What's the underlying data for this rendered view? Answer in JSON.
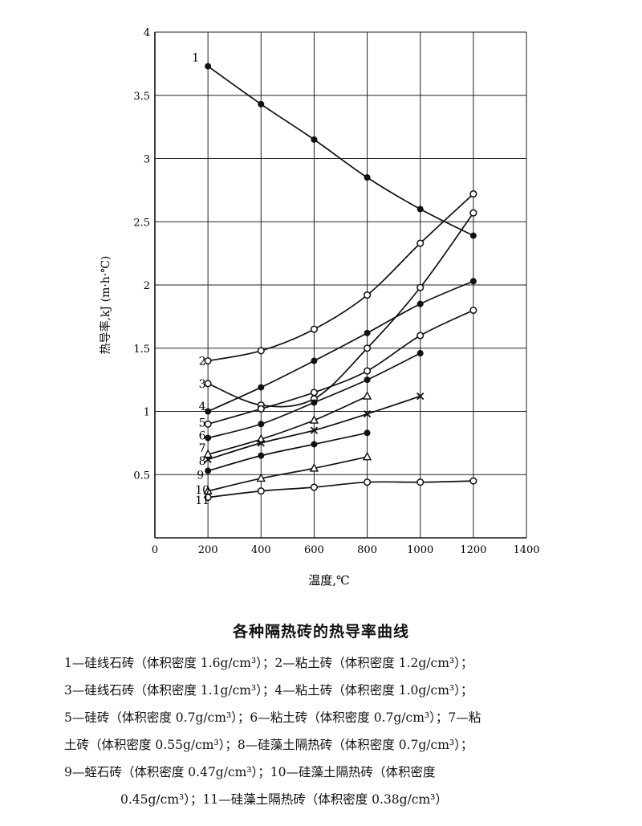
{
  "chart_data": {
    "type": "line",
    "xlabel": "温度,℃",
    "ylabel": "热导率,kJ (m·h·℃)",
    "xlim": [
      0,
      1400
    ],
    "ylim": [
      0,
      4
    ],
    "x_ticks": [
      0,
      200,
      400,
      600,
      800,
      1000,
      1200,
      1400
    ],
    "x_tick_labels": [
      "0",
      "200",
      "400",
      "600",
      "800",
      "1000",
      "1200",
      "1400"
    ],
    "y_ticks": [
      0.5,
      1,
      1.5,
      2,
      2.5,
      3,
      3.5,
      4
    ],
    "y_tick_labels": [
      "0.5",
      "1",
      "1.5",
      "2",
      "2.5",
      "3",
      "3.5",
      "4"
    ],
    "grid": true,
    "series": [
      {
        "name": "1",
        "marker": "dot",
        "x": [
          200,
          400,
          600,
          800,
          1000,
          1200
        ],
        "y": [
          3.73,
          3.43,
          3.15,
          2.85,
          2.6,
          2.39
        ]
      },
      {
        "name": "2",
        "marker": "circle",
        "x": [
          200,
          400,
          600,
          800,
          1000,
          1200
        ],
        "y": [
          1.4,
          1.48,
          1.65,
          1.92,
          2.33,
          2.72
        ]
      },
      {
        "name": "3",
        "marker": "circle",
        "x": [
          200,
          400,
          600,
          800,
          1000,
          1200
        ],
        "y": [
          1.22,
          1.05,
          1.1,
          1.5,
          1.98,
          2.57
        ]
      },
      {
        "name": "4",
        "marker": "dot",
        "x": [
          200,
          400,
          600,
          800,
          1000,
          1200
        ],
        "y": [
          1.0,
          1.19,
          1.4,
          1.62,
          1.85,
          2.03
        ]
      },
      {
        "name": "5",
        "marker": "circle",
        "x": [
          200,
          400,
          600,
          800,
          1000,
          1200
        ],
        "y": [
          0.9,
          1.02,
          1.15,
          1.32,
          1.6,
          1.8
        ]
      },
      {
        "name": "6",
        "marker": "dot",
        "x": [
          200,
          400,
          600,
          800,
          1000
        ],
        "y": [
          0.79,
          0.9,
          1.07,
          1.25,
          1.46
        ]
      },
      {
        "name": "7",
        "marker": "triangle",
        "x": [
          200,
          400,
          600,
          800
        ],
        "y": [
          0.66,
          0.78,
          0.93,
          1.12
        ]
      },
      {
        "name": "8",
        "marker": "cross",
        "x": [
          200,
          400,
          600,
          800,
          1000
        ],
        "y": [
          0.62,
          0.75,
          0.85,
          0.98,
          1.12
        ]
      },
      {
        "name": "9",
        "marker": "dot",
        "x": [
          200,
          400,
          600,
          800
        ],
        "y": [
          0.53,
          0.65,
          0.74,
          0.83
        ]
      },
      {
        "name": "10",
        "marker": "triangle",
        "x": [
          200,
          400,
          600,
          800
        ],
        "y": [
          0.37,
          0.47,
          0.55,
          0.64
        ]
      },
      {
        "name": "11",
        "marker": "circle",
        "x": [
          200,
          400,
          600,
          800,
          1000,
          1200
        ],
        "y": [
          0.32,
          0.37,
          0.4,
          0.44,
          0.44,
          0.45
        ]
      }
    ],
    "labels": [
      {
        "text": "1",
        "x": 140,
        "y": 3.8
      },
      {
        "text": "2",
        "x": 165,
        "y": 1.4
      },
      {
        "text": "3",
        "x": 165,
        "y": 1.22
      },
      {
        "text": "4",
        "x": 165,
        "y": 1.04
      },
      {
        "text": "5",
        "x": 165,
        "y": 0.91
      },
      {
        "text": "6",
        "x": 165,
        "y": 0.81
      },
      {
        "text": "7",
        "x": 165,
        "y": 0.71
      },
      {
        "text": "8",
        "x": 165,
        "y": 0.61
      },
      {
        "text": "9",
        "x": 158,
        "y": 0.5
      },
      {
        "text": "10",
        "x": 152,
        "y": 0.38
      },
      {
        "text": "11",
        "x": 152,
        "y": 0.3
      }
    ]
  },
  "caption": {
    "title": "各种隔热砖的热导率曲线",
    "lines": [
      "1—硅线石砖（体积密度 1.6g/cm³）；2—粘土砖（体积密度 1.2g/cm³）；",
      "3—硅线石砖（体积密度 1.1g/cm³）；4—粘土砖（体积密度 1.0g/cm³）；",
      "5—硅砖（体积密度 0.7g/cm³）；6—粘土砖（体积密度 0.7g/cm³）；7—粘",
      "土砖（体积密度 0.55g/cm³）；8—硅藻土隔热砖（体积密度 0.7g/cm³）；",
      "9—蛭石砖（体积密度 0.47g/cm³）；10—硅藻土隔热砖（体积密度",
      "0.45g/cm³）；11—硅藻土隔热砖（体积密度 0.38g/cm³）"
    ]
  }
}
